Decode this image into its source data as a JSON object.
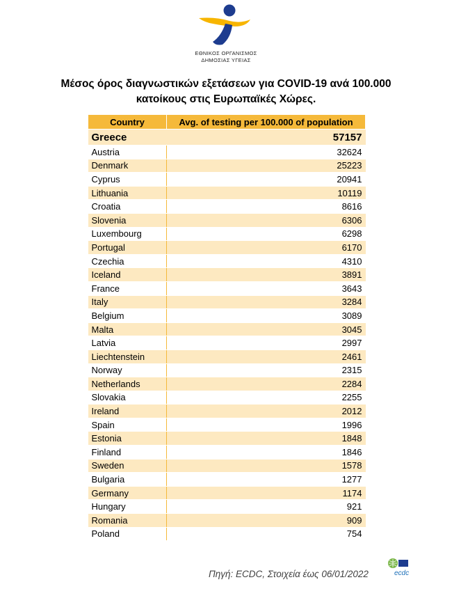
{
  "header": {
    "org_line1": "ΕΘΝΙΚΟΣ ΟΡΓΑΝΙΣΜΟΣ",
    "org_line2": "ΔΗΜΟΣΙΑΣ ΥΓΕΙΑΣ",
    "logo_icon": "eody-logo-icon",
    "colors": {
      "yellow": "#f7b500",
      "blue": "#1d3c8f"
    }
  },
  "title_line1": "Μέσος όρος διαγνωστικών εξετάσεων για COVID-19 ανά 100.000",
  "title_line2": "κατοίκους στις Ευρωπαϊκές Χώρες.",
  "table": {
    "col_country": "Country",
    "col_value": "Avg. of testing per 100.000 of population",
    "rows": [
      {
        "country": "Greece",
        "value": "57157"
      },
      {
        "country": "Austria",
        "value": "32624"
      },
      {
        "country": "Denmark",
        "value": "25223"
      },
      {
        "country": "Cyprus",
        "value": "20941"
      },
      {
        "country": "Lithuania",
        "value": "10119"
      },
      {
        "country": "Croatia",
        "value": "8616"
      },
      {
        "country": "Slovenia",
        "value": "6306"
      },
      {
        "country": "Luxembourg",
        "value": "6298"
      },
      {
        "country": "Portugal",
        "value": "6170"
      },
      {
        "country": "Czechia",
        "value": "4310"
      },
      {
        "country": "Iceland",
        "value": "3891"
      },
      {
        "country": "France",
        "value": "3643"
      },
      {
        "country": "Italy",
        "value": "3284"
      },
      {
        "country": "Belgium",
        "value": "3089"
      },
      {
        "country": "Malta",
        "value": "3045"
      },
      {
        "country": "Latvia",
        "value": "2997"
      },
      {
        "country": "Liechtenstein",
        "value": "2461"
      },
      {
        "country": "Norway",
        "value": "2315"
      },
      {
        "country": "Netherlands",
        "value": "2284"
      },
      {
        "country": "Slovakia",
        "value": "2255"
      },
      {
        "country": "Ireland",
        "value": "2012"
      },
      {
        "country": "Spain",
        "value": "1996"
      },
      {
        "country": "Estonia",
        "value": "1848"
      },
      {
        "country": "Finland",
        "value": "1846"
      },
      {
        "country": "Sweden",
        "value": "1578"
      },
      {
        "country": "Bulgaria",
        "value": "1277"
      },
      {
        "country": "Germany",
        "value": "1174"
      },
      {
        "country": "Hungary",
        "value": "921"
      },
      {
        "country": "Romania",
        "value": "909"
      },
      {
        "country": "Poland",
        "value": "754"
      }
    ]
  },
  "footer": {
    "source": "Πηγή: ECDC, Στοιχεία έως 06/01/2022",
    "ecdc_logo_text": "ecdc"
  }
}
